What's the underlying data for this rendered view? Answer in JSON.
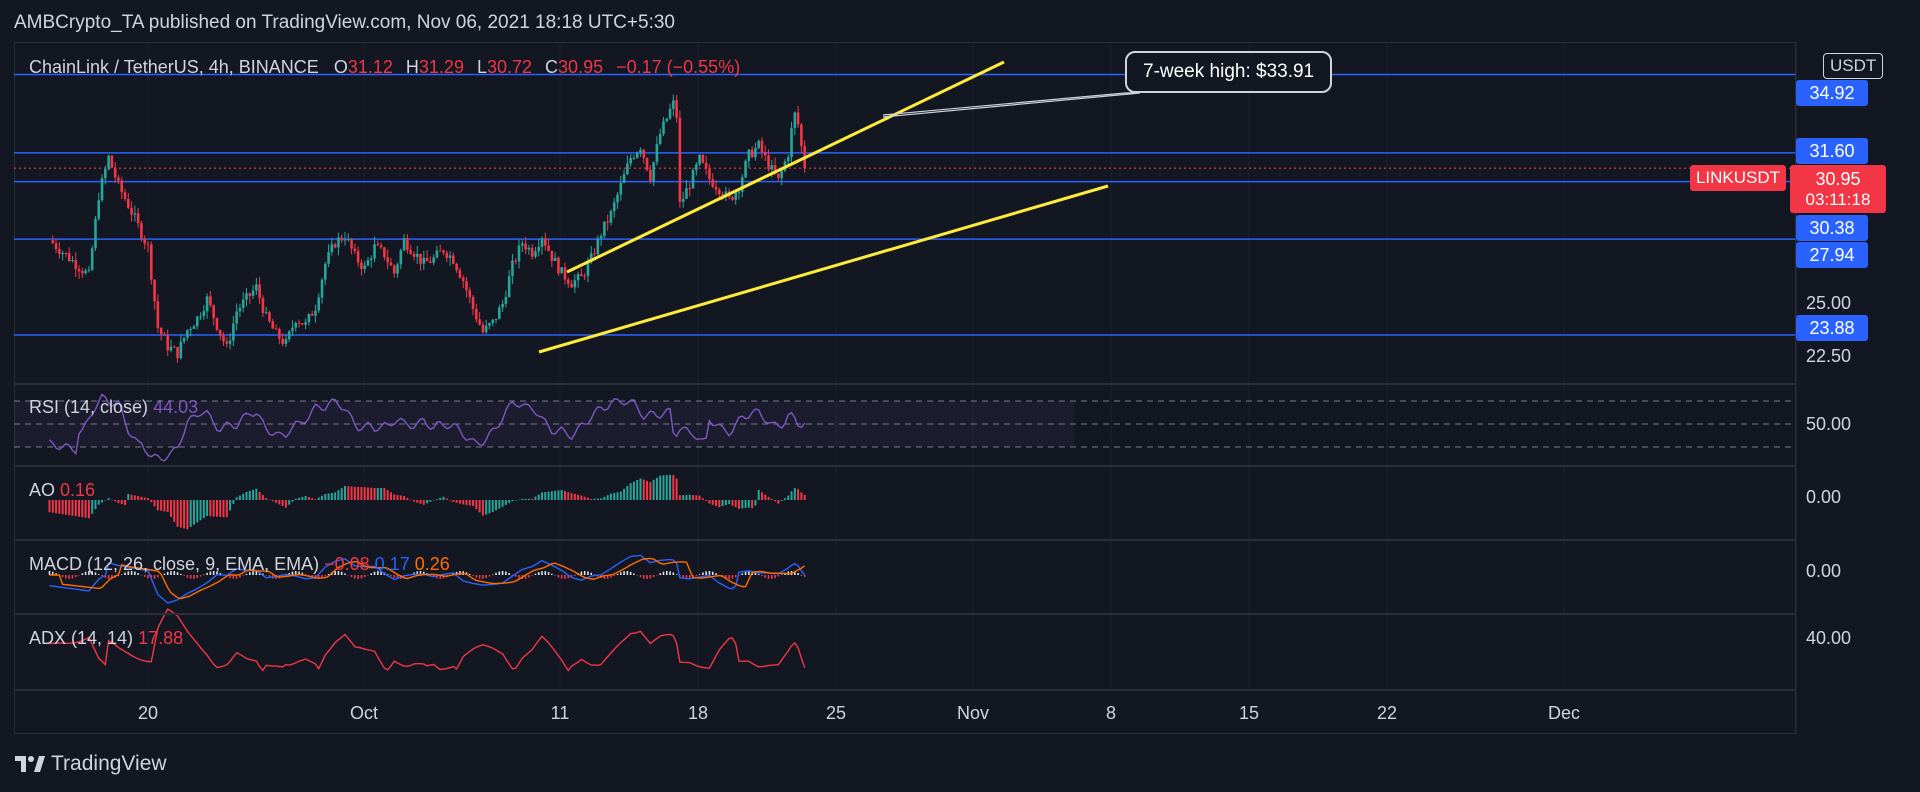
{
  "header": {
    "text": "AMBCrypto_TA published on TradingView.com, Nov 06, 2021 18:18 UTC+5:30"
  },
  "legend": {
    "symbol": "ChainLink / TetherUS, 4h, BINANCE",
    "o_label": "O",
    "o": "31.12",
    "h_label": "H",
    "h": "31.29",
    "l_label": "L",
    "l": "30.72",
    "c_label": "C",
    "c": "30.95",
    "change": "−0.17 (−0.55%)"
  },
  "currency": "USDT",
  "callout": "7-week high: $33.91",
  "current": {
    "symbol": "LINKUSDT",
    "price": "30.95",
    "countdown": "03:11:18"
  },
  "levels": [
    "34.92",
    "31.60",
    "30.38",
    "27.94",
    "23.88"
  ],
  "price_axis": [
    "25.00",
    "22.50"
  ],
  "indicators": {
    "rsi": {
      "name": "RSI (14, close)",
      "value": "44.03",
      "axis": "50.00"
    },
    "ao": {
      "name": "AO",
      "value": "0.16",
      "axis": "0.00"
    },
    "macd": {
      "name": "MACD (12, 26, close, 9, EMA, EMA)",
      "hist": "−0.08",
      "macd": "0.17",
      "signal": "0.26",
      "axis": "0.00"
    },
    "adx": {
      "name": "ADX (14, 14)",
      "value": "17.88",
      "axis": "40.00"
    }
  },
  "x_axis": [
    "20",
    "Oct",
    "11",
    "18",
    "25",
    "Nov",
    "8",
    "15",
    "22",
    "Dec"
  ],
  "brand": "TradingView",
  "colors": {
    "up": "#26a69a",
    "down": "#f23645",
    "level": "#2962ff",
    "trend": "#ffeb3b",
    "rsi": "#7e57c2",
    "adx": "#f23645",
    "macd": "#2962ff",
    "signal": "#ff6d00"
  },
  "chart_data": {
    "type": "candlestick",
    "title": "ChainLink / TetherUS, 4h, BINANCE",
    "x_ticks": [
      "20",
      "Oct",
      "11",
      "18",
      "25",
      "Nov",
      "8",
      "15",
      "22",
      "Dec"
    ],
    "y_ticks": [
      22.5,
      25.0
    ],
    "y_range": [
      21.8,
      36.3
    ],
    "horizontal_levels": [
      34.92,
      31.6,
      30.38,
      27.94,
      23.88
    ],
    "current_price": 30.95,
    "annotation": "7-week high: $33.91",
    "close_path": [
      [
        15,
        27.9
      ],
      [
        17,
        26.4
      ],
      [
        17.5,
        29.8
      ],
      [
        18,
        31.4
      ],
      [
        18.5,
        30.2
      ],
      [
        19,
        29.4
      ],
      [
        20,
        27.6
      ],
      [
        20.5,
        24.2
      ],
      [
        21,
        23.4
      ],
      [
        21.5,
        23.1
      ],
      [
        22,
        24.1
      ],
      [
        22.5,
        24.6
      ],
      [
        23,
        25.4
      ],
      [
        23.5,
        24.3
      ],
      [
        24,
        23.3
      ],
      [
        24.5,
        24.9
      ],
      [
        25,
        25.4
      ],
      [
        25.5,
        25.9
      ],
      [
        26,
        24.6
      ],
      [
        26.5,
        23.9
      ],
      [
        27,
        23.5
      ],
      [
        27.5,
        24.6
      ],
      [
        28,
        24.3
      ],
      [
        28.5,
        25.1
      ],
      [
        29,
        26.9
      ],
      [
        29.5,
        27.8
      ],
      [
        30,
        28.1
      ],
      [
        30.5,
        27.2
      ],
      [
        31,
        26.7
      ],
      [
        31.5,
        27.6
      ],
      [
        32,
        27.3
      ],
      [
        32.5,
        26.5
      ],
      [
        33,
        27.9
      ],
      [
        33.5,
        27.4
      ],
      [
        34,
        26.9
      ],
      [
        34.5,
        27.1
      ],
      [
        35,
        27.5
      ],
      [
        35.5,
        27.1
      ],
      [
        36,
        26.2
      ],
      [
        36.5,
        25.0
      ],
      [
        37,
        24.0
      ],
      [
        37.5,
        24.4
      ],
      [
        38,
        25.2
      ],
      [
        38.5,
        26.8
      ],
      [
        39,
        27.8
      ],
      [
        39.5,
        27.4
      ],
      [
        40,
        28.1
      ],
      [
        40.5,
        27.2
      ],
      [
        41,
        26.5
      ],
      [
        41.5,
        26.1
      ],
      [
        42,
        26.3
      ],
      [
        42.5,
        27.1
      ],
      [
        43,
        28.2
      ],
      [
        43.5,
        29.0
      ],
      [
        44,
        30.2
      ],
      [
        44.5,
        31.4
      ],
      [
        45,
        31.9
      ],
      [
        45.5,
        30.6
      ],
      [
        46,
        32.4
      ],
      [
        46.5,
        33.4
      ],
      [
        46.8,
        33.91
      ],
      [
        47,
        29.4
      ],
      [
        47.5,
        30.3
      ],
      [
        48,
        31.3
      ],
      [
        48.5,
        30.5
      ],
      [
        49,
        30.1
      ],
      [
        49.5,
        29.6
      ],
      [
        50,
        30.2
      ],
      [
        50.5,
        31.5
      ],
      [
        51,
        31.9
      ],
      [
        51.5,
        31.1
      ],
      [
        52,
        30.4
      ],
      [
        52.5,
        31.6
      ],
      [
        52.8,
        33.3
      ],
      [
        53,
        32.8
      ],
      [
        53.3,
        31.1
      ],
      [
        53.4,
        30.95
      ]
    ],
    "series": [
      {
        "name": "RSI (14, close)",
        "last": 44.03
      },
      {
        "name": "AO",
        "last": 0.16
      },
      {
        "name": "MACD (12, 26, close, 9, EMA, EMA)",
        "last": [
          -0.08,
          0.17,
          0.26
        ]
      },
      {
        "name": "ADX (14, 14)",
        "last": 17.88
      }
    ]
  }
}
